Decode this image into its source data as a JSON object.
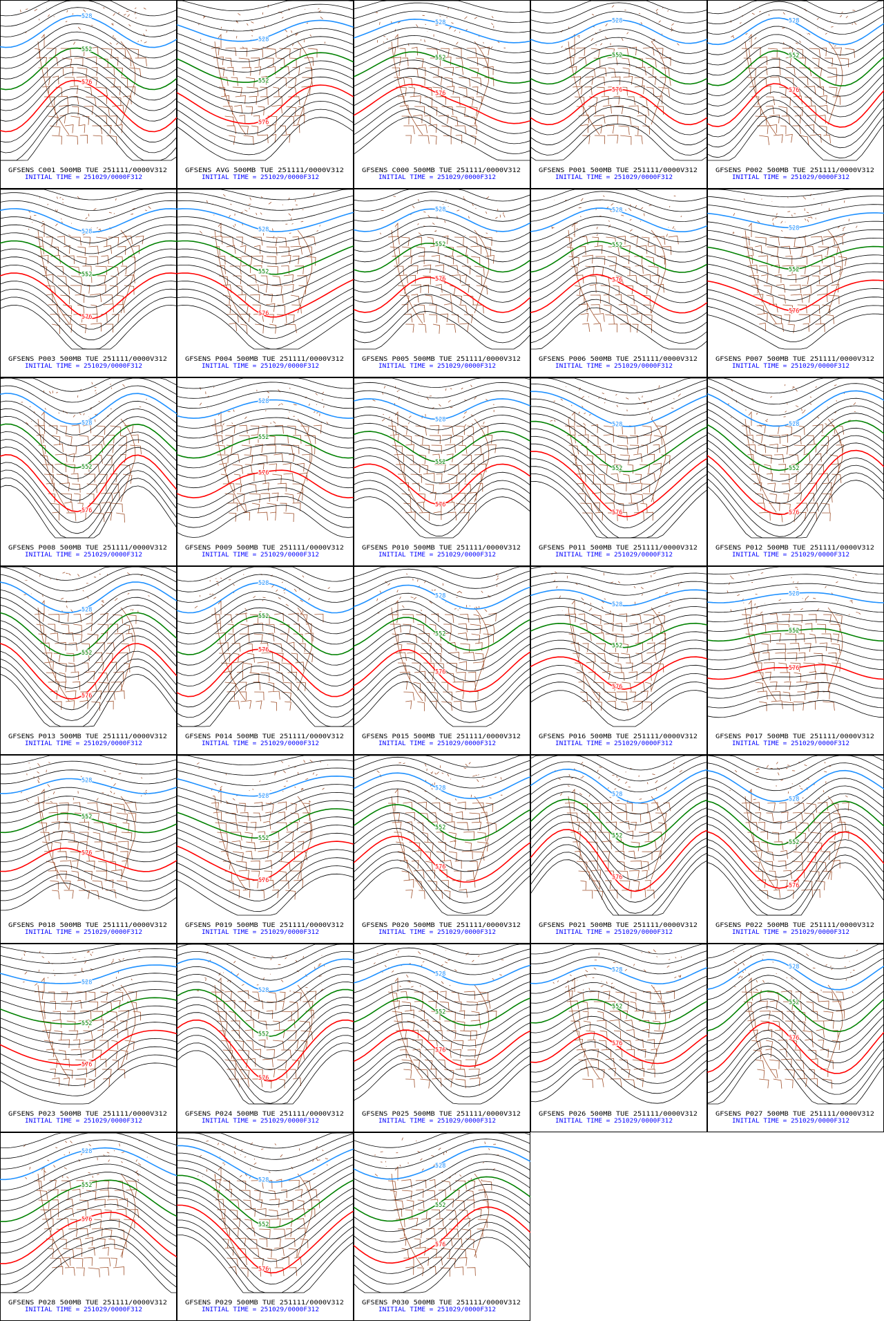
{
  "panels": [
    {
      "title": "GFSENS C001 500MB TUE 251111/0000V312",
      "subtitle": "INITIAL TIME = 251029/0000F312",
      "labels": [
        "528",
        "552",
        "576"
      ]
    },
    {
      "title": "GFSENS AVG 500MB TUE 251111/0000V312",
      "subtitle": "INITIAL TIME = 251029/0000F312",
      "labels": [
        "528",
        "552",
        "576"
      ]
    },
    {
      "title": "GFSENS C000 500MB TUE 251111/0000V312",
      "subtitle": "INITIAL TIME = 251029/0000F312",
      "labels": [
        "528",
        "552",
        "576"
      ]
    },
    {
      "title": "GFSENS P001 500MB TUE 251111/0000V312",
      "subtitle": "INITIAL TIME = 251029/0000F312",
      "labels": [
        "528",
        "552",
        "576"
      ]
    },
    {
      "title": "GFSENS P002 500MB TUE 251111/0000V312",
      "subtitle": "INITIAL TIME = 251029/0000F312",
      "labels": [
        "528",
        "552",
        "576"
      ]
    },
    {
      "title": "GFSENS P003 500MB TUE 251111/0000V312",
      "subtitle": "INITIAL TIME = 251029/0000F312",
      "labels": [
        "528",
        "552",
        "576"
      ]
    },
    {
      "title": "GFSENS P004 500MB TUE 251111/0000V312",
      "subtitle": "INITIAL TIME = 251029/0000F312",
      "labels": [
        "528",
        "552",
        "576"
      ]
    },
    {
      "title": "GFSENS P005 500MB TUE 251111/0000V312",
      "subtitle": "INITIAL TIME = 251029/0000F312",
      "labels": [
        "528",
        "552",
        "576"
      ]
    },
    {
      "title": "GFSENS P006 500MB TUE 251111/0000V312",
      "subtitle": "INITIAL TIME = 251029/0000F312",
      "labels": [
        "528",
        "552",
        "576"
      ]
    },
    {
      "title": "GFSENS P007 500MB TUE 251111/0000V312",
      "subtitle": "INITIAL TIME = 251029/0000F312",
      "labels": [
        "528",
        "552",
        "576"
      ]
    },
    {
      "title": "GFSENS P008 500MB TUE 251111/0000V312",
      "subtitle": "INITIAL TIME = 251029/0000F312",
      "labels": [
        "528",
        "552",
        "576"
      ]
    },
    {
      "title": "GFSENS P009 500MB TUE 251111/0000V312",
      "subtitle": "INITIAL TIME = 251029/0000F312",
      "labels": [
        "528",
        "552",
        "576"
      ]
    },
    {
      "title": "GFSENS P010 500MB TUE 251111/0000V312",
      "subtitle": "INITIAL TIME = 251029/0000F312",
      "labels": [
        "528",
        "552",
        "576"
      ]
    },
    {
      "title": "GFSENS P011 500MB TUE 251111/0000V312",
      "subtitle": "INITIAL TIME = 251029/0000F312",
      "labels": [
        "528",
        "552",
        "576"
      ]
    },
    {
      "title": "GFSENS P012 500MB TUE 251111/0000V312",
      "subtitle": "INITIAL TIME = 251029/0000F312",
      "labels": [
        "528",
        "552",
        "576"
      ]
    },
    {
      "title": "GFSENS P013 500MB TUE 251111/0000V312",
      "subtitle": "INITIAL TIME = 251029/0000F312",
      "labels": [
        "528",
        "552",
        "576"
      ]
    },
    {
      "title": "GFSENS P014 500MB TUE 251111/0000V312",
      "subtitle": "INITIAL TIME = 251029/0000F312",
      "labels": [
        "528",
        "552",
        "576"
      ]
    },
    {
      "title": "GFSENS P015 500MB TUE 251111/0000V312",
      "subtitle": "INITIAL TIME = 251029/0000F312",
      "labels": [
        "528",
        "552",
        "576"
      ]
    },
    {
      "title": "GFSENS P016 500MB TUE 251111/0000V312",
      "subtitle": "INITIAL TIME = 251029/0000F312",
      "labels": [
        "528",
        "552",
        "576"
      ]
    },
    {
      "title": "GFSENS P017 500MB TUE 251111/0000V312",
      "subtitle": "INITIAL TIME = 251029/0000F312",
      "labels": [
        "528",
        "552",
        "576"
      ]
    },
    {
      "title": "GFSENS P018 500MB TUE 251111/0000V312",
      "subtitle": "INITIAL TIME = 251029/0000F312",
      "labels": [
        "528",
        "552",
        "576"
      ]
    },
    {
      "title": "GFSENS P019 500MB TUE 251111/0000V312",
      "subtitle": "INITIAL TIME = 251029/0000F312",
      "labels": [
        "528",
        "552",
        "576"
      ]
    },
    {
      "title": "GFSENS P020 500MB TUE 251111/0000V312",
      "subtitle": "INITIAL TIME = 251029/0000F312",
      "labels": [
        "528",
        "552",
        "576"
      ]
    },
    {
      "title": "GFSENS P021 500MB TUE 251111/0000V312",
      "subtitle": "INITIAL TIME = 251029/0000F312",
      "labels": [
        "528",
        "552",
        "576"
      ]
    },
    {
      "title": "GFSENS P022 500MB TUE 251111/0000V312",
      "subtitle": "INITIAL TIME = 251029/0000F312",
      "labels": [
        "528",
        "552",
        "576"
      ]
    },
    {
      "title": "GFSENS P023 500MB TUE 251111/0000V312",
      "subtitle": "INITIAL TIME = 251029/0000F312",
      "labels": [
        "528",
        "552",
        "576"
      ]
    },
    {
      "title": "GFSENS P024 500MB TUE 251111/0000V312",
      "subtitle": "INITIAL TIME = 251029/0000F312",
      "labels": [
        "528",
        "552",
        "576"
      ]
    },
    {
      "title": "GFSENS P025 500MB TUE 251111/0000V312",
      "subtitle": "INITIAL TIME = 251029/0000F312",
      "labels": [
        "528",
        "552",
        "576"
      ]
    },
    {
      "title": "GFSENS P026 500MB TUE 251111/0000V312",
      "subtitle": "INITIAL TIME = 251029/0000F312",
      "labels": [
        "528",
        "552",
        "576"
      ]
    },
    {
      "title": "GFSENS P027 500MB TUE 251111/0000V312",
      "subtitle": "INITIAL TIME = 251029/0000F312",
      "labels": [
        "528",
        "552",
        "576"
      ]
    },
    {
      "title": "GFSENS P028 500MB TUE 251111/0000V312",
      "subtitle": "INITIAL TIME = 251029/0000F312",
      "labels": [
        "528",
        "552",
        "576"
      ]
    },
    {
      "title": "GFSENS P029 500MB TUE 251111/0000V312",
      "subtitle": "INITIAL TIME = 251029/0000F312",
      "labels": [
        "528",
        "552",
        "576"
      ]
    },
    {
      "title": "GFSENS P030 500MB TUE 251111/0000V312",
      "subtitle": "INITIAL TIME = 251029/0000F312",
      "labels": [
        "528",
        "552",
        "576"
      ]
    }
  ]
}
